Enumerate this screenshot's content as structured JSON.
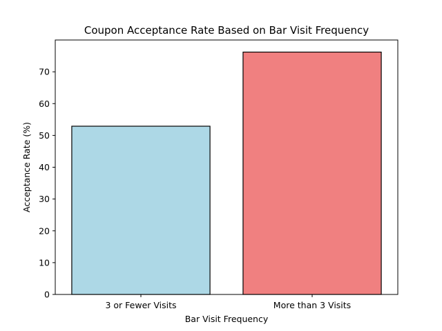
{
  "chart_data": {
    "type": "bar",
    "title": "Coupon Acceptance Rate Based on Bar Visit Frequency",
    "xlabel": "Bar Visit Frequency",
    "ylabel": "Acceptance Rate (%)",
    "categories": [
      "3 or Fewer Visits",
      "More than 3 Visits"
    ],
    "values": [
      52.9,
      76.2
    ],
    "colors": [
      "#add8e6",
      "#f08080"
    ],
    "edge_color": "#000000",
    "ylim": [
      0,
      80.0
    ],
    "yticks": [
      0,
      10,
      20,
      30,
      40,
      50,
      60,
      70
    ],
    "grid": false,
    "legend": "none"
  }
}
